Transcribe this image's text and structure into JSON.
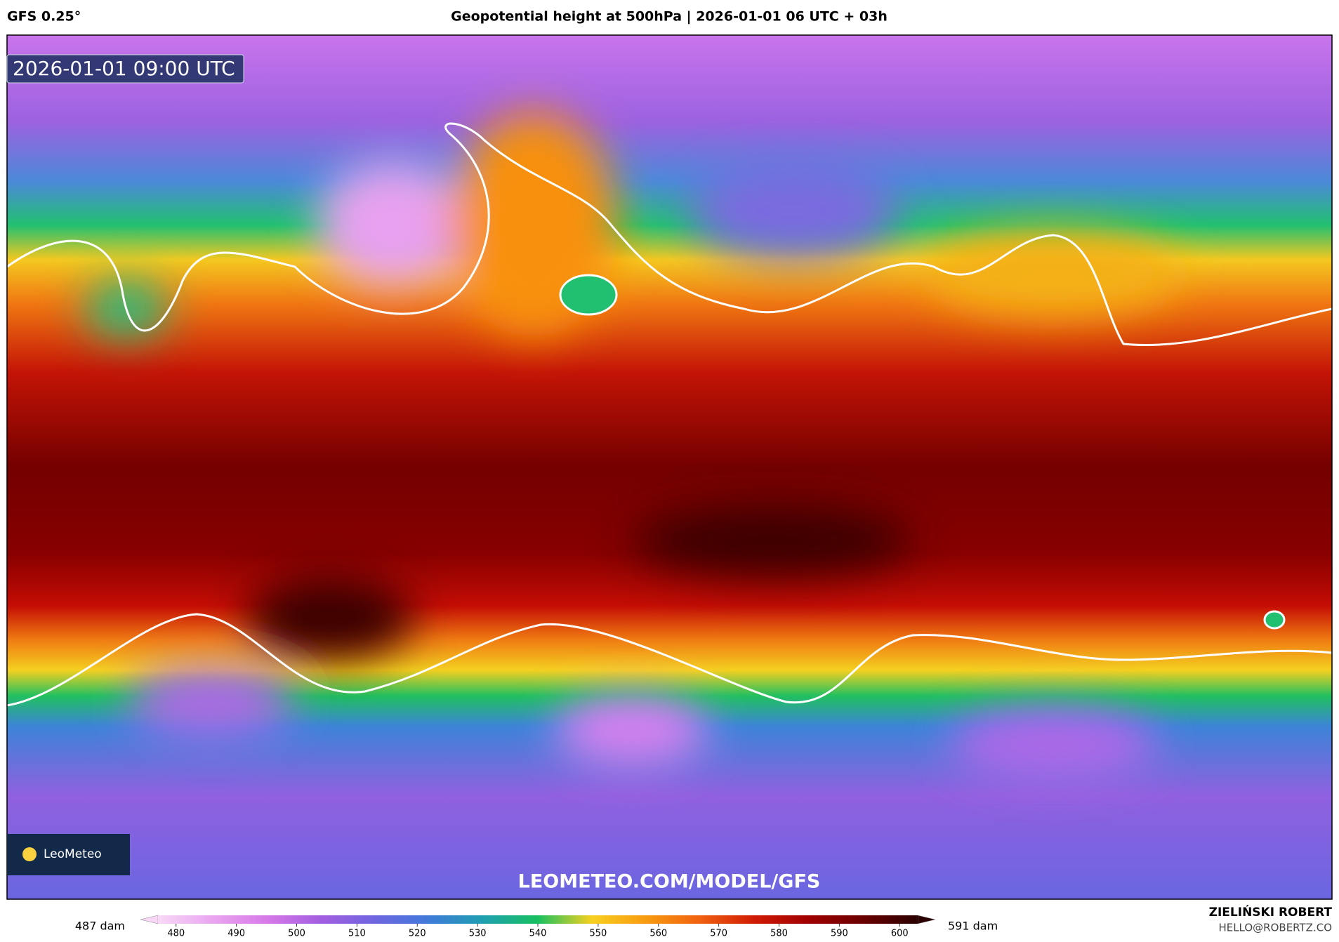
{
  "header": {
    "model": "GFS 0.25°",
    "title": "Geopotential height at 500hPa | 2026-01-01 06 UTC + 03h"
  },
  "map": {
    "timestamp": "2026-01-01 09:00 UTC",
    "watermark": "LEOMETEO.COM/MODEL/GFS",
    "logo": "LeoMeteo"
  },
  "colorbar": {
    "min_label": "487 dam",
    "max_label": "591 dam",
    "lim": [
      477,
      603
    ],
    "ticks": [
      480,
      490,
      500,
      510,
      520,
      530,
      540,
      550,
      560,
      570,
      580,
      590,
      600
    ],
    "colors": [
      "#f8d8f6",
      "#eaa6f0",
      "#d77ae8",
      "#a35ee0",
      "#6f66e0",
      "#3f7ad8",
      "#1fa0b0",
      "#18c060",
      "#f8d020",
      "#f89a10",
      "#f06010",
      "#d01a05",
      "#a00000",
      "#6a0000",
      "#2a0000"
    ]
  },
  "credit": {
    "name": "ZIELIŃSKI ROBERT",
    "email": "HELLO@ROBERTZ.CO"
  }
}
